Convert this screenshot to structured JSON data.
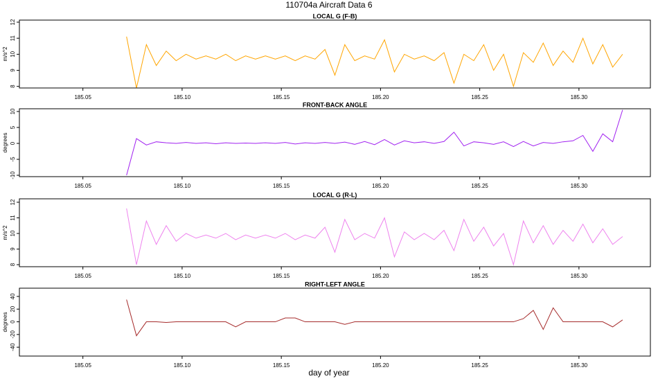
{
  "title": "110704a   Aircraft Data 6",
  "xlabel": "day of year",
  "chart_data": [
    {
      "type": "line",
      "title": "LOCAL G (F-B)",
      "ylabel": "m/s^2",
      "xlim": [
        185.018,
        185.336
      ],
      "ylim": [
        7.9,
        12.13
      ],
      "xticks": [
        185.05,
        {
          "value": 185.1,
          "label": "185.10"
        },
        185.15,
        {
          "value": 185.2,
          "label": "185.20"
        },
        185.25,
        {
          "value": 185.3,
          "label": "185.30"
        }
      ],
      "yticks": [
        8,
        9,
        10,
        11,
        12
      ],
      "series": [
        {
          "color": "#ffa500",
          "x": [
            185.072,
            185.077,
            185.082,
            185.087,
            185.092,
            185.097,
            185.102,
            185.107,
            185.112,
            185.117,
            185.122,
            185.127,
            185.132,
            185.137,
            185.142,
            185.147,
            185.152,
            185.157,
            185.162,
            185.167,
            185.172,
            185.177,
            185.182,
            185.187,
            185.192,
            185.197,
            185.202,
            185.207,
            185.212,
            185.217,
            185.222,
            185.227,
            185.232,
            185.237,
            185.242,
            185.247,
            185.252,
            185.257,
            185.262,
            185.267,
            185.272,
            185.277,
            185.282,
            185.287,
            185.292,
            185.297,
            185.302,
            185.307,
            185.312,
            185.317,
            185.322
          ],
          "values": [
            11.1,
            7.9,
            10.6,
            9.3,
            10.2,
            9.6,
            10.0,
            9.7,
            9.9,
            9.7,
            10.0,
            9.6,
            9.9,
            9.7,
            9.9,
            9.7,
            9.9,
            9.6,
            9.9,
            9.7,
            10.3,
            8.7,
            10.6,
            9.6,
            9.9,
            9.7,
            10.9,
            8.9,
            10.0,
            9.7,
            9.9,
            9.6,
            10.1,
            8.2,
            10.0,
            9.6,
            10.6,
            9.0,
            10.0,
            8.0,
            10.1,
            9.5,
            10.7,
            9.3,
            10.2,
            9.5,
            11.0,
            9.4,
            10.6,
            9.2,
            10.0
          ]
        }
      ]
    },
    {
      "type": "line",
      "title": "FRONT-BACK ANGLE",
      "ylabel": "degrees",
      "xlim": [
        185.018,
        185.336
      ],
      "ylim": [
        -10.43,
        10.86
      ],
      "xticks": [
        185.05,
        {
          "value": 185.1,
          "label": "185.10"
        },
        185.15,
        {
          "value": 185.2,
          "label": "185.20"
        },
        185.25,
        {
          "value": 185.3,
          "label": "185.30"
        }
      ],
      "yticks": [
        -10,
        -5,
        0,
        5,
        10
      ],
      "series": [
        {
          "color": "#a020f0",
          "x": [
            185.072,
            185.077,
            185.082,
            185.087,
            185.092,
            185.097,
            185.102,
            185.107,
            185.112,
            185.117,
            185.122,
            185.127,
            185.132,
            185.137,
            185.142,
            185.147,
            185.152,
            185.157,
            185.162,
            185.167,
            185.172,
            185.177,
            185.182,
            185.187,
            185.192,
            185.197,
            185.202,
            185.207,
            185.212,
            185.217,
            185.222,
            185.227,
            185.232,
            185.237,
            185.242,
            185.247,
            185.252,
            185.257,
            185.262,
            185.267,
            185.272,
            185.277,
            185.282,
            185.287,
            185.292,
            185.297,
            185.302,
            185.307,
            185.312,
            185.317,
            185.322
          ],
          "values": [
            -10,
            1.5,
            -0.5,
            0.5,
            0.2,
            0,
            0.3,
            0,
            0.2,
            -0.1,
            0.2,
            0,
            0.1,
            0,
            0.2,
            0,
            0.3,
            -0.2,
            0.2,
            0,
            0.3,
            0,
            0.4,
            -0.3,
            0.6,
            -0.4,
            1.2,
            -0.5,
            0.8,
            0.2,
            0.5,
            0,
            0.6,
            3.5,
            -0.8,
            0.5,
            0.2,
            -0.3,
            0.5,
            -1.0,
            0.6,
            -0.8,
            0.3,
            0,
            0.5,
            0.8,
            2.5,
            -2.5,
            3.0,
            0.5,
            10.5
          ]
        }
      ]
    },
    {
      "type": "line",
      "title": "LOCAL G (R-L)",
      "ylabel": "m/s^2",
      "xlim": [
        185.018,
        185.336
      ],
      "ylim": [
        7.87,
        12.22
      ],
      "xticks": [
        185.05,
        {
          "value": 185.1,
          "label": "185.10"
        },
        185.15,
        {
          "value": 185.2,
          "label": "185.20"
        },
        185.25,
        {
          "value": 185.3,
          "label": "185.30"
        }
      ],
      "yticks": [
        8,
        9,
        10,
        11,
        12
      ],
      "series": [
        {
          "color": "#ee82ee",
          "x": [
            185.072,
            185.077,
            185.082,
            185.087,
            185.092,
            185.097,
            185.102,
            185.107,
            185.112,
            185.117,
            185.122,
            185.127,
            185.132,
            185.137,
            185.142,
            185.147,
            185.152,
            185.157,
            185.162,
            185.167,
            185.172,
            185.177,
            185.182,
            185.187,
            185.192,
            185.197,
            185.202,
            185.207,
            185.212,
            185.217,
            185.222,
            185.227,
            185.232,
            185.237,
            185.242,
            185.247,
            185.252,
            185.257,
            185.262,
            185.267,
            185.272,
            185.277,
            185.282,
            185.287,
            185.292,
            185.297,
            185.302,
            185.307,
            185.312,
            185.317,
            185.322
          ],
          "values": [
            11.6,
            8.0,
            10.8,
            9.3,
            10.5,
            9.5,
            10.0,
            9.7,
            9.9,
            9.7,
            10.0,
            9.6,
            9.9,
            9.7,
            9.9,
            9.7,
            10.0,
            9.6,
            9.9,
            9.7,
            10.4,
            8.8,
            10.9,
            9.6,
            10.0,
            9.7,
            11.0,
            8.5,
            10.1,
            9.6,
            10.0,
            9.6,
            10.2,
            8.9,
            10.9,
            9.5,
            10.4,
            9.2,
            10.0,
            8.0,
            10.8,
            9.4,
            10.5,
            9.3,
            10.2,
            9.5,
            10.6,
            9.4,
            10.3,
            9.3,
            9.8
          ]
        }
      ]
    },
    {
      "type": "line",
      "title": "RIGHT-LEFT ANGLE",
      "ylabel": "degrees",
      "xlim": [
        185.018,
        185.336
      ],
      "ylim": [
        -54,
        53
      ],
      "xticks": [
        185.05,
        {
          "value": 185.1,
          "label": "185.10"
        },
        185.15,
        {
          "value": 185.2,
          "label": "185.20"
        },
        185.25,
        {
          "value": 185.3,
          "label": "185.30"
        }
      ],
      "yticks": [
        -40,
        -20,
        0,
        20,
        40
      ],
      "series": [
        {
          "color": "#a52a2a",
          "x": [
            185.072,
            185.077,
            185.082,
            185.087,
            185.092,
            185.097,
            185.102,
            185.107,
            185.112,
            185.117,
            185.122,
            185.127,
            185.132,
            185.137,
            185.142,
            185.147,
            185.152,
            185.157,
            185.162,
            185.167,
            185.172,
            185.177,
            185.182,
            185.187,
            185.192,
            185.197,
            185.202,
            185.207,
            185.212,
            185.217,
            185.222,
            185.227,
            185.232,
            185.237,
            185.242,
            185.247,
            185.252,
            185.257,
            185.262,
            185.267,
            185.272,
            185.277,
            185.282,
            185.287,
            185.292,
            185.297,
            185.302,
            185.307,
            185.312,
            185.317,
            185.322
          ],
          "values": [
            35,
            -22,
            0,
            0,
            -1,
            0,
            0,
            0,
            0,
            0,
            0,
            -8,
            0,
            0,
            0,
            0,
            6,
            6,
            0,
            0,
            0,
            0,
            -4,
            0,
            0,
            0,
            0,
            0,
            0,
            0,
            0,
            0,
            0,
            0,
            0,
            0,
            0,
            0,
            0,
            0,
            5,
            18,
            -12,
            22,
            0,
            0,
            0,
            0,
            0,
            -8,
            3
          ]
        }
      ]
    }
  ]
}
